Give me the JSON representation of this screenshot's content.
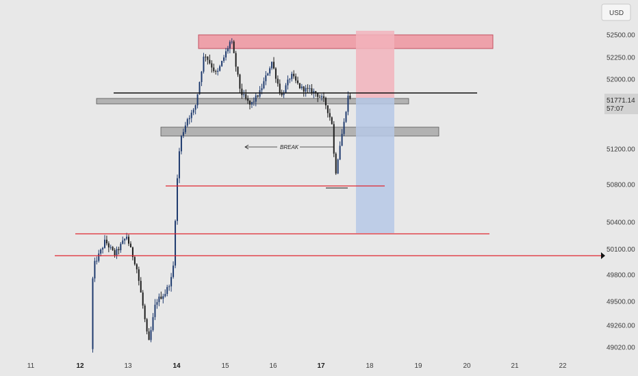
{
  "chart_data": {
    "type": "candlestick",
    "currency": "USD",
    "y_ticks": [
      "52500.00",
      "52250.00",
      "52000.00",
      "51200.00",
      "50800.00",
      "50400.00",
      "50100.00",
      "49800.00",
      "49500.00",
      "49260.00",
      "49020.00"
    ],
    "y_tick_values": [
      52500,
      52250,
      52000,
      51200,
      50800,
      50400,
      50100,
      49800,
      49500,
      49260,
      49020
    ],
    "ylim": [
      48900,
      52800
    ],
    "x_ticks": [
      "11",
      "12",
      "13",
      "14",
      "15",
      "16",
      "17",
      "18",
      "19",
      "20",
      "21",
      "22"
    ],
    "x_tick_values": [
      11,
      12,
      13,
      14,
      15,
      16,
      17,
      18,
      19,
      20,
      21,
      22
    ],
    "xlim": [
      10.6,
      23.1
    ],
    "current_price": "51771.14",
    "current_price_value": 51771.14,
    "countdown": "57:07",
    "marked_level": "50100.00",
    "marked_level_value": 50100,
    "annotation": "BREAK",
    "colors": {
      "up": "#1e3a6e",
      "down": "#1c1c1c",
      "support_line": "#e0242e",
      "gray_zone": "#a8a8a8",
      "red_zone": "#ef8e9a",
      "target_zone": "#f2b3bc",
      "stop_zone": "#b6c8e6"
    }
  }
}
